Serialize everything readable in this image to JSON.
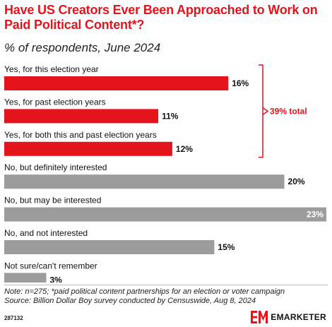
{
  "title": "Have US Creators Ever Been Approached to Work on Paid Political Content*?",
  "subtitle": "% of respondents, June 2024",
  "colors": {
    "accent": "#e4141c",
    "neutral": "#9c9c9c",
    "bracket": "#e4141c"
  },
  "chart_data": {
    "type": "bar",
    "orientation": "horizontal",
    "categories": [
      "Yes, for this election year",
      "Yes, for past election years",
      "Yes, for both this and past election years",
      "No, but definitely interested",
      "No, but may be interested",
      "No, and not interested",
      "Not sure/can't remember"
    ],
    "values": [
      16,
      11,
      12,
      20,
      23,
      15,
      3
    ],
    "value_labels": [
      "16%",
      "11%",
      "12%",
      "20%",
      "23%",
      "15%",
      "3%"
    ],
    "highlight": [
      true,
      true,
      true,
      false,
      false,
      false,
      false
    ],
    "xlim": [
      0,
      23
    ],
    "grid": false,
    "annotation": {
      "text": "39% total",
      "spans": [
        0,
        2
      ]
    }
  },
  "footer": {
    "note": "Note: n=275; *paid political content partnerships for an election or voter campaign",
    "source": "Source: Billion Dollar Boy survey conducted by Censuswide, Aug 8, 2024",
    "chart_id": "287132",
    "brand": "EMARKETER",
    "brand_icon": "em-logo-icon"
  }
}
